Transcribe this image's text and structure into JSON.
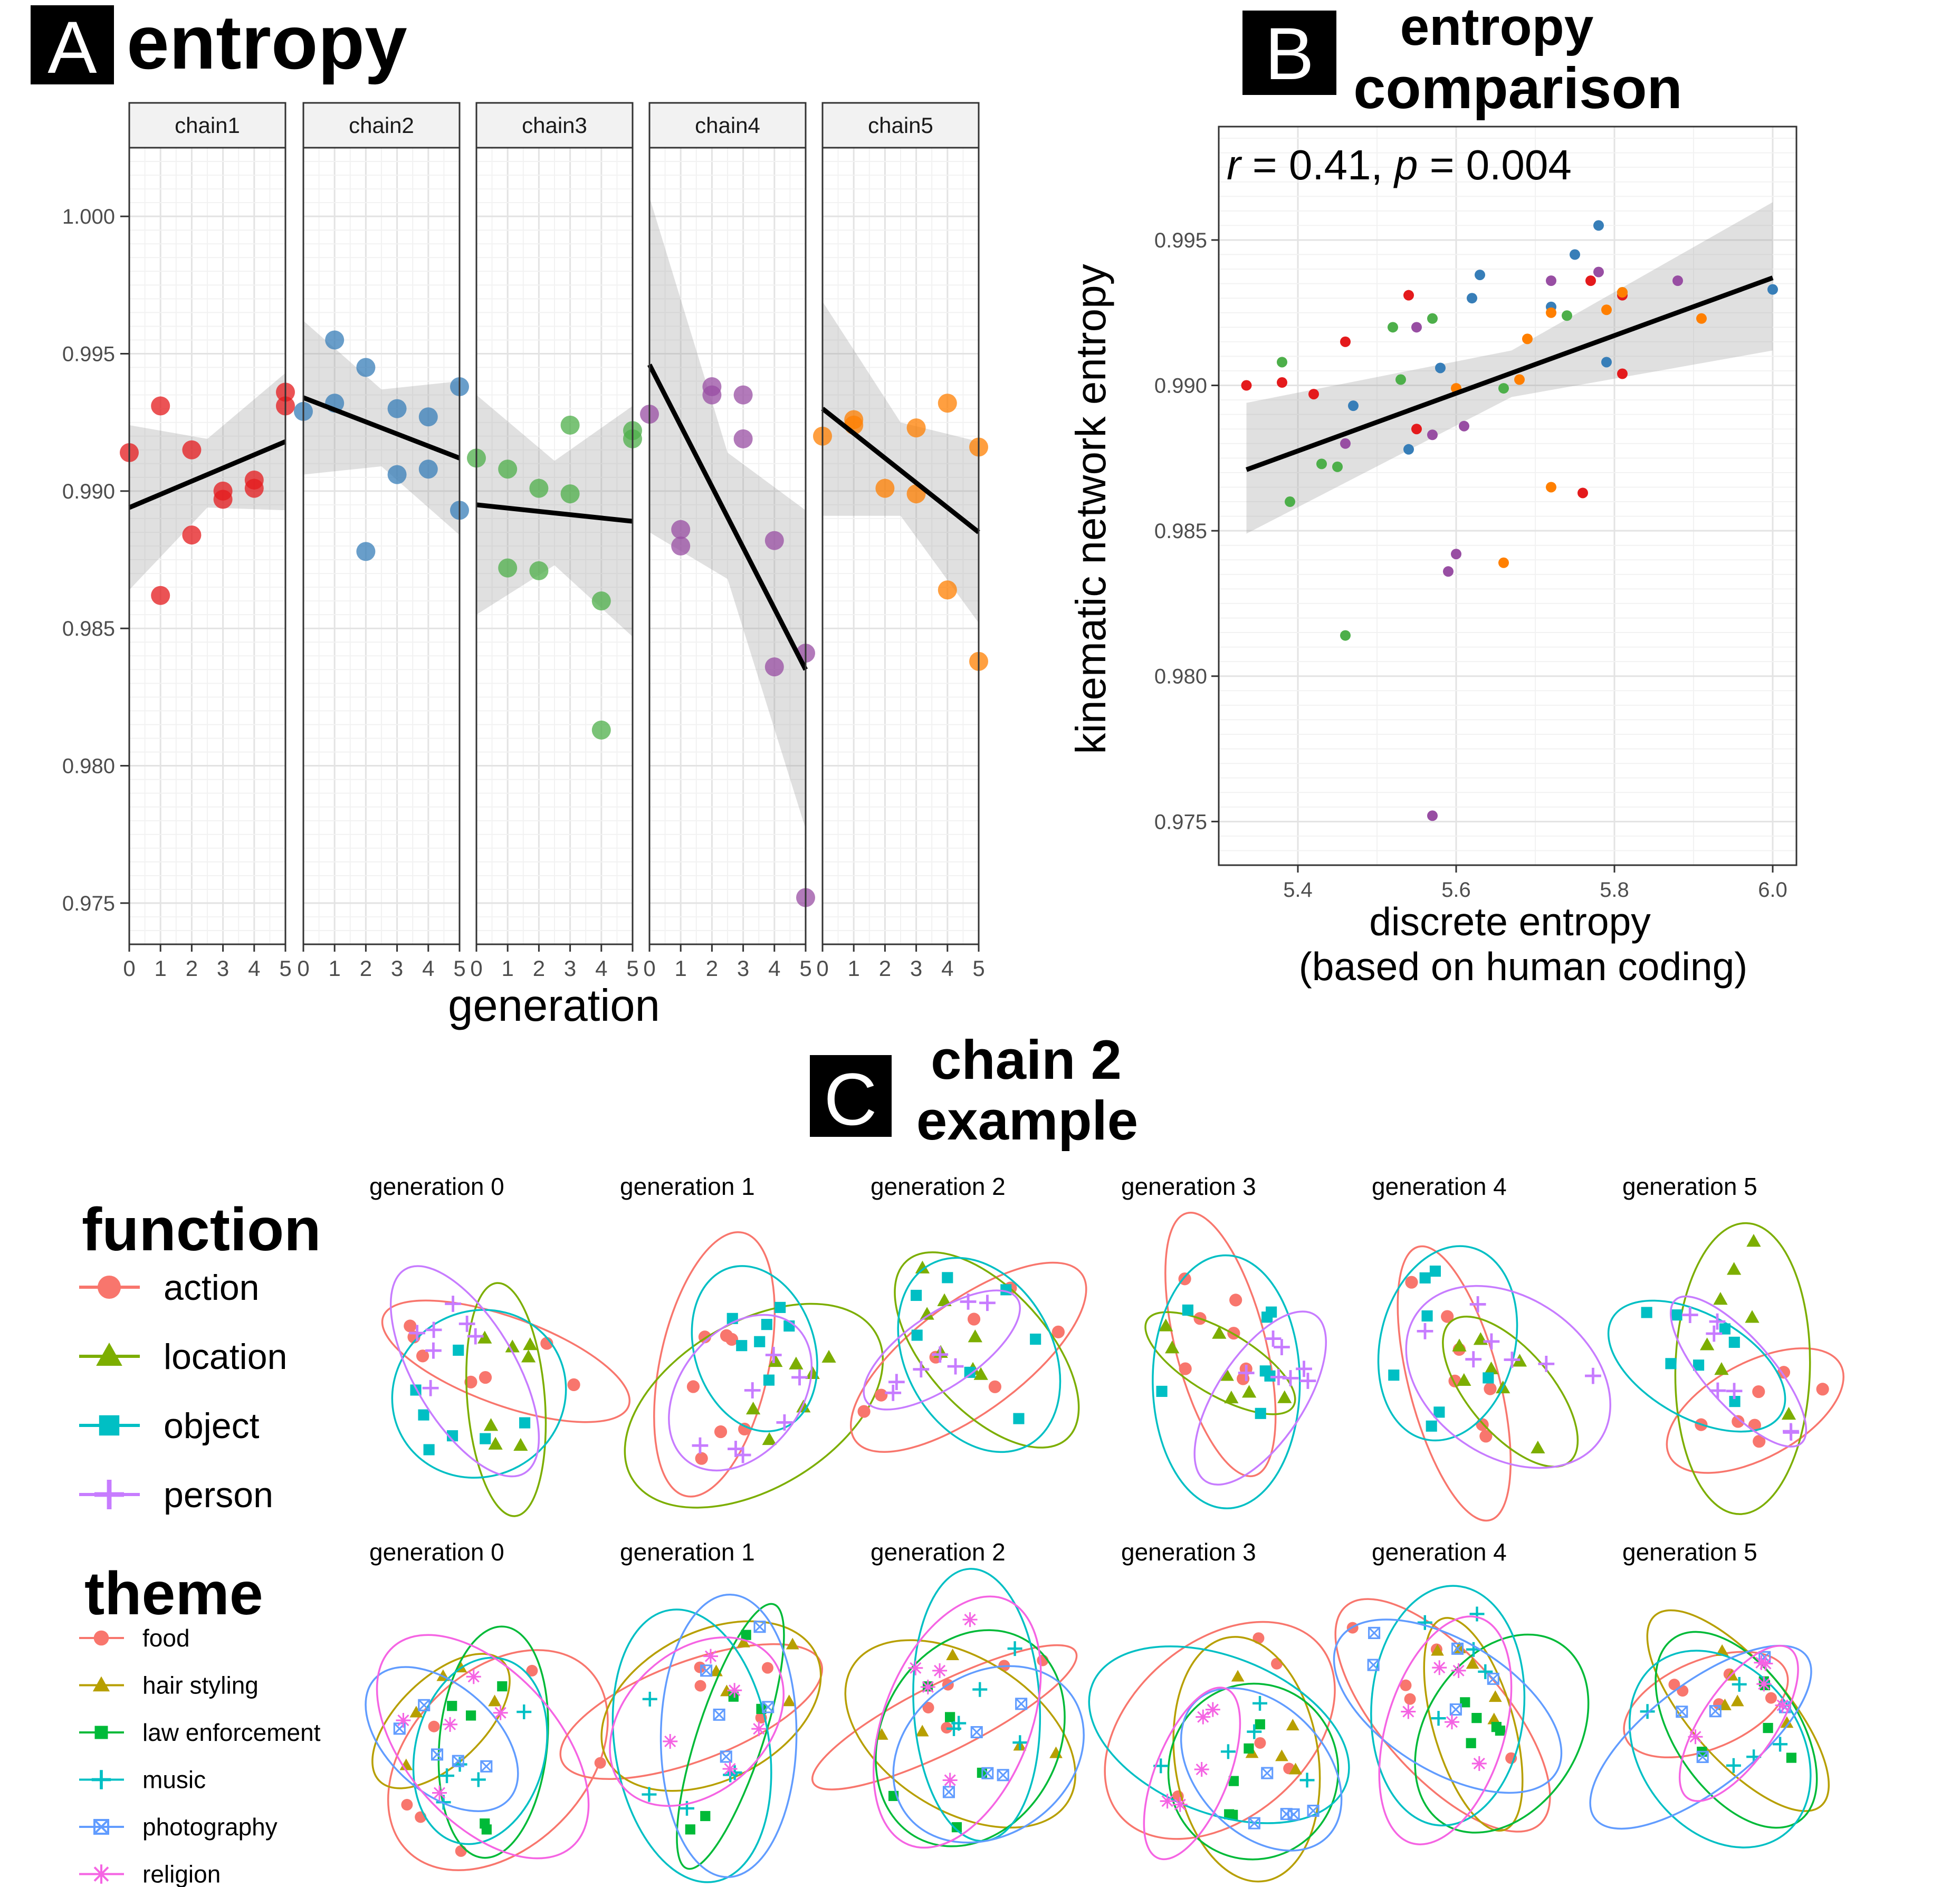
{
  "panelA": {
    "letter": "A",
    "title": "entropy",
    "xlabel": "generation",
    "facets": [
      "chain1",
      "chain2",
      "chain3",
      "chain4",
      "chain5"
    ],
    "xticks": [
      "0",
      "1",
      "2",
      "3",
      "4",
      "5"
    ],
    "yticks": [
      "0.975",
      "0.980",
      "0.985",
      "0.990",
      "0.995",
      "1.000"
    ]
  },
  "panelB": {
    "letter": "B",
    "title_line1": "entropy",
    "title_line2": "comparison",
    "stat_r": "r",
    "stat_r_val": " = 0.41, ",
    "stat_p": "p",
    "stat_p_val": " = 0.004",
    "ylabel": "kinematic network entropy",
    "xlabel_line1": "discrete entropy",
    "xlabel_line2": "(based on human coding)",
    "xticks": [
      "5.4",
      "5.6",
      "5.8",
      "6.0"
    ],
    "yticks": [
      "0.975",
      "0.980",
      "0.985",
      "0.990",
      "0.995"
    ]
  },
  "panelC": {
    "letter": "C",
    "title_line1": "chain 2",
    "title_line2": "example",
    "generations": [
      "generation 0",
      "generation 1",
      "generation 2",
      "generation 3",
      "generation 4",
      "generation 5"
    ],
    "legend_function": {
      "title": "function",
      "items": [
        {
          "label": "action",
          "color": "#F8766D",
          "shape": "circle"
        },
        {
          "label": "location",
          "color": "#7CAE00",
          "shape": "triangle"
        },
        {
          "label": "object",
          "color": "#00BFC4",
          "shape": "square"
        },
        {
          "label": "person",
          "color": "#C77CFF",
          "shape": "plus"
        }
      ]
    },
    "legend_theme": {
      "title": "theme",
      "items": [
        {
          "label": "food",
          "color": "#F8766D",
          "shape": "circle"
        },
        {
          "label": "hair styling",
          "color": "#B79F00",
          "shape": "triangle"
        },
        {
          "label": "law enforcement",
          "color": "#00BA38",
          "shape": "square"
        },
        {
          "label": "music",
          "color": "#00BFC4",
          "shape": "plus"
        },
        {
          "label": "photography",
          "color": "#619CFF",
          "shape": "boxx"
        },
        {
          "label": "religion",
          "color": "#F564E3",
          "shape": "star"
        }
      ]
    }
  },
  "chart_data": [
    {
      "type": "scatter",
      "title": "entropy",
      "xlabel": "generation",
      "ylabel": "",
      "ylim": [
        0.9735,
        1.0025
      ],
      "xlim": [
        0,
        5
      ],
      "facets": [
        {
          "name": "chain1",
          "color": "#E41A1C",
          "points": [
            [
              0,
              0.9914
            ],
            [
              1,
              0.9931
            ],
            [
              1,
              0.9862
            ],
            [
              2,
              0.9915
            ],
            [
              2,
              0.9884
            ],
            [
              3,
              0.99
            ],
            [
              3,
              0.9897
            ],
            [
              4,
              0.9904
            ],
            [
              4,
              0.9901
            ],
            [
              5,
              0.9936
            ],
            [
              5,
              0.9931
            ]
          ],
          "fit": [
            [
              0,
              0.9894
            ],
            [
              5,
              0.9918
            ]
          ],
          "band": [
            [
              0,
              0.9864,
              0.9924
            ],
            [
              2.5,
              0.9894,
              0.9919
            ],
            [
              5,
              0.9893,
              0.9943
            ]
          ]
        },
        {
          "name": "chain2",
          "color": "#377EB8",
          "points": [
            [
              0,
              0.9929
            ],
            [
              1,
              0.9955
            ],
            [
              1,
              0.9932
            ],
            [
              2,
              0.9945
            ],
            [
              2,
              0.9878
            ],
            [
              3,
              0.993
            ],
            [
              3,
              0.9906
            ],
            [
              4,
              0.9927
            ],
            [
              4,
              0.9908
            ],
            [
              5,
              0.9938
            ],
            [
              5,
              0.9893
            ]
          ],
          "fit": [
            [
              0,
              0.9934
            ],
            [
              5,
              0.9912
            ]
          ],
          "band": [
            [
              0,
              0.9906,
              0.9962
            ],
            [
              2.5,
              0.9909,
              0.9937
            ],
            [
              5,
              0.9884,
              0.994
            ]
          ]
        },
        {
          "name": "chain3",
          "color": "#4DAF4A",
          "points": [
            [
              0,
              0.9912
            ],
            [
              1,
              0.9908
            ],
            [
              1,
              0.9872
            ],
            [
              2,
              0.9901
            ],
            [
              2,
              0.9871
            ],
            [
              3,
              0.9924
            ],
            [
              3,
              0.9899
            ],
            [
              4,
              0.986
            ],
            [
              4,
              0.9813
            ],
            [
              5,
              0.9922
            ],
            [
              5,
              0.9919
            ]
          ],
          "fit": [
            [
              0,
              0.9895
            ],
            [
              5,
              0.9889
            ]
          ],
          "band": [
            [
              0,
              0.9935,
              0.9855
            ],
            [
              2.5,
              0.9911,
              0.9873
            ],
            [
              5,
              0.9931,
              0.9847
            ]
          ]
        },
        {
          "name": "chain4",
          "color": "#984EA3",
          "points": [
            [
              0,
              0.9928
            ],
            [
              1,
              0.9886
            ],
            [
              1,
              0.988
            ],
            [
              2,
              0.9938
            ],
            [
              2,
              0.9935
            ],
            [
              3,
              0.9935
            ],
            [
              3,
              0.9919
            ],
            [
              4,
              0.9882
            ],
            [
              4,
              0.9836
            ],
            [
              5,
              0.9841
            ],
            [
              5,
              0.9752
            ]
          ],
          "fit": [
            [
              0,
              0.9946
            ],
            [
              5,
              0.9835
            ]
          ],
          "band": [
            [
              0,
              1.0007,
              0.9885
            ],
            [
              2.5,
              0.9914,
              0.9868
            ],
            [
              5,
              0.9893,
              0.9777
            ]
          ]
        },
        {
          "name": "chain5",
          "color": "#FF7F00",
          "points": [
            [
              0,
              0.992
            ],
            [
              1,
              0.9926
            ],
            [
              1,
              0.9924
            ],
            [
              2,
              0.9901
            ],
            [
              3,
              0.9923
            ],
            [
              3,
              0.9899
            ],
            [
              4,
              0.9932
            ],
            [
              4,
              0.9864
            ],
            [
              5,
              0.9916
            ],
            [
              5,
              0.9838
            ]
          ],
          "fit": [
            [
              0,
              0.993
            ],
            [
              5,
              0.9885
            ]
          ],
          "band": [
            [
              0,
              0.9969,
              0.9891
            ],
            [
              2.5,
              0.9925,
              0.9891
            ],
            [
              5,
              0.9918,
              0.9852
            ]
          ]
        }
      ]
    },
    {
      "type": "scatter",
      "title": "entropy comparison",
      "xlabel": "discrete entropy (based on human coding)",
      "ylabel": "kinematic network entropy",
      "xlim": [
        5.3,
        6.03
      ],
      "ylim": [
        0.9735,
        0.9989
      ],
      "annotation": "r = 0.41, p = 0.004",
      "fit": [
        [
          5.335,
          0.9871
        ],
        [
          6.0,
          0.9937
        ]
      ],
      "band": [
        [
          5.335,
          0.9849,
          0.9894
        ],
        [
          5.67,
          0.9896,
          0.9912
        ],
        [
          6.0,
          0.9912,
          0.9963
        ]
      ],
      "series": [
        {
          "name": "chain1",
          "color": "#E41A1C",
          "points": [
            [
              5.335,
              0.99
            ],
            [
              5.38,
              0.9901
            ],
            [
              5.42,
              0.9897
            ],
            [
              5.46,
              0.9915
            ],
            [
              5.54,
              0.9931
            ],
            [
              5.55,
              0.9885
            ],
            [
              5.76,
              0.9863
            ],
            [
              5.77,
              0.9936
            ],
            [
              5.81,
              0.9904
            ],
            [
              5.81,
              0.9931
            ]
          ]
        },
        {
          "name": "chain2",
          "color": "#377EB8",
          "points": [
            [
              5.47,
              0.9893
            ],
            [
              5.54,
              0.9878
            ],
            [
              5.58,
              0.9906
            ],
            [
              5.62,
              0.993
            ],
            [
              5.63,
              0.9938
            ],
            [
              5.72,
              0.9927
            ],
            [
              5.75,
              0.9945
            ],
            [
              5.78,
              0.9955
            ],
            [
              5.79,
              0.9908
            ],
            [
              6.0,
              0.9933
            ]
          ]
        },
        {
          "name": "chain3",
          "color": "#4DAF4A",
          "points": [
            [
              5.38,
              0.9908
            ],
            [
              5.39,
              0.986
            ],
            [
              5.43,
              0.9873
            ],
            [
              5.45,
              0.9872
            ],
            [
              5.46,
              0.9814
            ],
            [
              5.52,
              0.992
            ],
            [
              5.53,
              0.9902
            ],
            [
              5.57,
              0.9923
            ],
            [
              5.66,
              0.9899
            ],
            [
              5.74,
              0.9924
            ],
            [
              5.81,
              0.9932
            ]
          ]
        },
        {
          "name": "chain4",
          "color": "#984EA3",
          "points": [
            [
              5.46,
              0.988
            ],
            [
              5.55,
              0.992
            ],
            [
              5.57,
              0.9883
            ],
            [
              5.57,
              0.9752
            ],
            [
              5.59,
              0.9836
            ],
            [
              5.6,
              0.9842
            ],
            [
              5.61,
              0.9886
            ],
            [
              5.72,
              0.9936
            ],
            [
              5.78,
              0.9939
            ],
            [
              5.88,
              0.9936
            ]
          ]
        },
        {
          "name": "chain5",
          "color": "#FF7F00",
          "points": [
            [
              5.6,
              0.9899
            ],
            [
              5.66,
              0.9839
            ],
            [
              5.68,
              0.9902
            ],
            [
              5.69,
              0.9916
            ],
            [
              5.72,
              0.9865
            ],
            [
              5.72,
              0.9925
            ],
            [
              5.79,
              0.9926
            ],
            [
              5.81,
              0.9932
            ],
            [
              5.91,
              0.9923
            ]
          ]
        }
      ]
    }
  ]
}
